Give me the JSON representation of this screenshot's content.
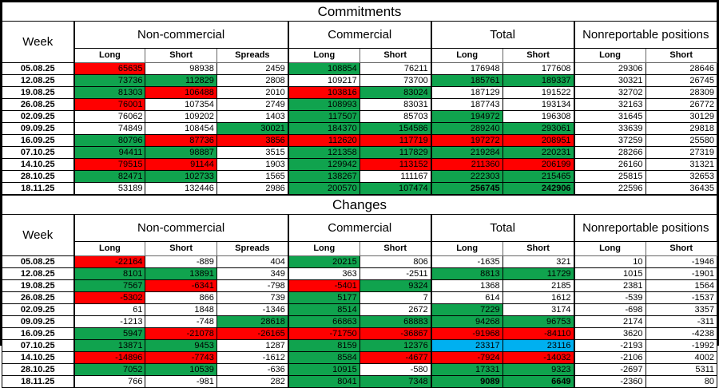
{
  "colors": {
    "positive_green": "#10A34E",
    "negative_red": "#FF0000",
    "highlight_blue": "#00B0F0",
    "grid_black": "#000000",
    "inner_grid_gray": "#6B6B6B"
  },
  "chart_data": [
    {
      "type": "table",
      "title": "Commitments",
      "week_header": "Week",
      "groups": [
        {
          "label": "Non-commercial",
          "cols": [
            "Long",
            "Short",
            "Spreads"
          ]
        },
        {
          "label": "Commercial",
          "cols": [
            "Long",
            "Short"
          ]
        },
        {
          "label": "Total",
          "cols": [
            "Long",
            "Short"
          ]
        },
        {
          "label": "Nonreportable positions",
          "cols": [
            "Long",
            "Short"
          ]
        }
      ],
      "rows": [
        {
          "week": "05.08.25",
          "cells": [
            [
              "65635",
              "r"
            ],
            [
              "98938",
              "w"
            ],
            [
              "2459",
              "w"
            ],
            [
              "108854",
              "g"
            ],
            [
              "76211",
              "w"
            ],
            [
              "176948",
              "w"
            ],
            [
              "177608",
              "w"
            ],
            [
              "29306",
              "w"
            ],
            [
              "28646",
              "w"
            ]
          ]
        },
        {
          "week": "12.08.25",
          "cells": [
            [
              "73736",
              "g"
            ],
            [
              "112829",
              "g"
            ],
            [
              "2808",
              "w"
            ],
            [
              "109217",
              "w"
            ],
            [
              "73700",
              "w"
            ],
            [
              "185761",
              "g"
            ],
            [
              "189337",
              "g"
            ],
            [
              "30321",
              "w"
            ],
            [
              "26745",
              "w"
            ]
          ]
        },
        {
          "week": "19.08.25",
          "cells": [
            [
              "81303",
              "g"
            ],
            [
              "106488",
              "r"
            ],
            [
              "2010",
              "w"
            ],
            [
              "103816",
              "r"
            ],
            [
              "83024",
              "g"
            ],
            [
              "187129",
              "w"
            ],
            [
              "191522",
              "w"
            ],
            [
              "32702",
              "w"
            ],
            [
              "28309",
              "w"
            ]
          ]
        },
        {
          "week": "26.08.25",
          "cells": [
            [
              "76001",
              "r"
            ],
            [
              "107354",
              "w"
            ],
            [
              "2749",
              "w"
            ],
            [
              "108993",
              "g"
            ],
            [
              "83031",
              "w"
            ],
            [
              "187743",
              "w"
            ],
            [
              "193134",
              "w"
            ],
            [
              "32163",
              "w"
            ],
            [
              "26772",
              "w"
            ]
          ]
        },
        {
          "week": "02.09.25",
          "cells": [
            [
              "76062",
              "w"
            ],
            [
              "109202",
              "w"
            ],
            [
              "1403",
              "w"
            ],
            [
              "117507",
              "g"
            ],
            [
              "85703",
              "w"
            ],
            [
              "194972",
              "g"
            ],
            [
              "196308",
              "w"
            ],
            [
              "31645",
              "w"
            ],
            [
              "30129",
              "w"
            ]
          ]
        },
        {
          "week": "09.09.25",
          "cells": [
            [
              "74849",
              "w"
            ],
            [
              "108454",
              "w"
            ],
            [
              "30021",
              "g"
            ],
            [
              "184370",
              "g"
            ],
            [
              "154586",
              "g"
            ],
            [
              "289240",
              "g"
            ],
            [
              "293061",
              "g"
            ],
            [
              "33639",
              "w"
            ],
            [
              "29818",
              "w"
            ]
          ]
        },
        {
          "week": "16.09.25",
          "cells": [
            [
              "80796",
              "g"
            ],
            [
              "87736",
              "r"
            ],
            [
              "3856",
              "r"
            ],
            [
              "112620",
              "r"
            ],
            [
              "117719",
              "r"
            ],
            [
              "197272",
              "r"
            ],
            [
              "208951",
              "r"
            ],
            [
              "37259",
              "w"
            ],
            [
              "25580",
              "w"
            ]
          ]
        },
        {
          "week": "07.10.25",
          "cells": [
            [
              "94411",
              "g"
            ],
            [
              "98887",
              "g"
            ],
            [
              "3515",
              "w"
            ],
            [
              "121358",
              "g"
            ],
            [
              "117829",
              "g"
            ],
            [
              "219284",
              "g"
            ],
            [
              "220231",
              "g"
            ],
            [
              "28266",
              "w"
            ],
            [
              "27319",
              "w"
            ]
          ]
        },
        {
          "week": "14.10.25",
          "cells": [
            [
              "79515",
              "r"
            ],
            [
              "91144",
              "r"
            ],
            [
              "1903",
              "w"
            ],
            [
              "129942",
              "g"
            ],
            [
              "113152",
              "r"
            ],
            [
              "211360",
              "r"
            ],
            [
              "206199",
              "r"
            ],
            [
              "26160",
              "w"
            ],
            [
              "31321",
              "w"
            ]
          ]
        },
        {
          "week": "28.10.25",
          "cells": [
            [
              "82471",
              "g"
            ],
            [
              "102733",
              "g"
            ],
            [
              "1565",
              "w"
            ],
            [
              "138267",
              "g"
            ],
            [
              "111167",
              "w"
            ],
            [
              "222303",
              "g"
            ],
            [
              "215465",
              "g"
            ],
            [
              "25815",
              "w"
            ],
            [
              "32653",
              "w"
            ]
          ]
        },
        {
          "week": "18.11.25",
          "cells": [
            [
              "53189",
              "w"
            ],
            [
              "132446",
              "w"
            ],
            [
              "2986",
              "w"
            ],
            [
              "200570",
              "g"
            ],
            [
              "107474",
              "g"
            ],
            [
              "256745",
              "gb"
            ],
            [
              "242906",
              "gb"
            ],
            [
              "22596",
              "w"
            ],
            [
              "36435",
              "w"
            ]
          ]
        }
      ]
    },
    {
      "type": "table",
      "title": "Changes",
      "week_header": "Week",
      "groups": [
        {
          "label": "Non-commercial",
          "cols": [
            "Long",
            "Short",
            "Spreads"
          ]
        },
        {
          "label": "Commercial",
          "cols": [
            "Long",
            "Short"
          ]
        },
        {
          "label": "Total",
          "cols": [
            "Long",
            "Short"
          ]
        },
        {
          "label": "Nonreportable positions",
          "cols": [
            "Long",
            "Short"
          ]
        }
      ],
      "rows": [
        {
          "week": "05.08.25",
          "cells": [
            [
              "-22164",
              "r"
            ],
            [
              "-889",
              "w"
            ],
            [
              "404",
              "w"
            ],
            [
              "20215",
              "g"
            ],
            [
              "806",
              "w"
            ],
            [
              "-1635",
              "w"
            ],
            [
              "321",
              "w"
            ],
            [
              "10",
              "w"
            ],
            [
              "-1946",
              "w"
            ]
          ]
        },
        {
          "week": "12.08.25",
          "cells": [
            [
              "8101",
              "g"
            ],
            [
              "13891",
              "g"
            ],
            [
              "349",
              "w"
            ],
            [
              "363",
              "w"
            ],
            [
              "-2511",
              "w"
            ],
            [
              "8813",
              "g"
            ],
            [
              "11729",
              "g"
            ],
            [
              "1015",
              "w"
            ],
            [
              "-1901",
              "w"
            ]
          ]
        },
        {
          "week": "19.08.25",
          "cells": [
            [
              "7567",
              "g"
            ],
            [
              "-6341",
              "r"
            ],
            [
              "-798",
              "w"
            ],
            [
              "-5401",
              "r"
            ],
            [
              "9324",
              "g"
            ],
            [
              "1368",
              "w"
            ],
            [
              "2185",
              "w"
            ],
            [
              "2381",
              "w"
            ],
            [
              "1564",
              "w"
            ]
          ]
        },
        {
          "week": "26.08.25",
          "cells": [
            [
              "-5302",
              "r"
            ],
            [
              "866",
              "w"
            ],
            [
              "739",
              "w"
            ],
            [
              "5177",
              "g"
            ],
            [
              "7",
              "w"
            ],
            [
              "614",
              "w"
            ],
            [
              "1612",
              "w"
            ],
            [
              "-539",
              "w"
            ],
            [
              "-1537",
              "w"
            ]
          ]
        },
        {
          "week": "02.09.25",
          "cells": [
            [
              "61",
              "w"
            ],
            [
              "1848",
              "w"
            ],
            [
              "-1346",
              "w"
            ],
            [
              "8514",
              "g"
            ],
            [
              "2672",
              "w"
            ],
            [
              "7229",
              "g"
            ],
            [
              "3174",
              "w"
            ],
            [
              "-698",
              "w"
            ],
            [
              "3357",
              "w"
            ]
          ]
        },
        {
          "week": "09.09.25",
          "cells": [
            [
              "-1213",
              "w"
            ],
            [
              "-748",
              "w"
            ],
            [
              "28618",
              "g"
            ],
            [
              "66863",
              "g"
            ],
            [
              "68883",
              "g"
            ],
            [
              "94268",
              "g"
            ],
            [
              "96753",
              "g"
            ],
            [
              "2174",
              "w"
            ],
            [
              "-311",
              "w"
            ]
          ]
        },
        {
          "week": "16.09.25",
          "cells": [
            [
              "5947",
              "g"
            ],
            [
              "-21078",
              "r"
            ],
            [
              "-26165",
              "r"
            ],
            [
              "-71750",
              "r"
            ],
            [
              "-36867",
              "r"
            ],
            [
              "-91968",
              "r"
            ],
            [
              "-84110",
              "r"
            ],
            [
              "3620",
              "w"
            ],
            [
              "-4238",
              "w"
            ]
          ]
        },
        {
          "week": "07.10.25",
          "cells": [
            [
              "13871",
              "g"
            ],
            [
              "9453",
              "g"
            ],
            [
              "1287",
              "w"
            ],
            [
              "8159",
              "g"
            ],
            [
              "12376",
              "g"
            ],
            [
              "23317",
              "b"
            ],
            [
              "23116",
              "b"
            ],
            [
              "-2193",
              "w"
            ],
            [
              "-1992",
              "w"
            ]
          ]
        },
        {
          "week": "14.10.25",
          "cells": [
            [
              "-14896",
              "r"
            ],
            [
              "-7743",
              "r"
            ],
            [
              "-1612",
              "w"
            ],
            [
              "8584",
              "g"
            ],
            [
              "-4677",
              "r"
            ],
            [
              "-7924",
              "r"
            ],
            [
              "-14032",
              "r"
            ],
            [
              "-2106",
              "w"
            ],
            [
              "4002",
              "w"
            ]
          ]
        },
        {
          "week": "28.10.25",
          "cells": [
            [
              "7052",
              "g"
            ],
            [
              "10539",
              "g"
            ],
            [
              "-636",
              "w"
            ],
            [
              "10915",
              "g"
            ],
            [
              "-580",
              "w"
            ],
            [
              "17331",
              "g"
            ],
            [
              "9323",
              "g"
            ],
            [
              "-2697",
              "w"
            ],
            [
              "5311",
              "w"
            ]
          ]
        },
        {
          "week": "18.11.25",
          "cells": [
            [
              "766",
              "w"
            ],
            [
              "-981",
              "w"
            ],
            [
              "282",
              "w"
            ],
            [
              "8041",
              "g"
            ],
            [
              "7348",
              "g"
            ],
            [
              "9089",
              "gb"
            ],
            [
              "6649",
              "gb"
            ],
            [
              "-2360",
              "w"
            ],
            [
              "80",
              "w"
            ]
          ]
        }
      ]
    }
  ]
}
